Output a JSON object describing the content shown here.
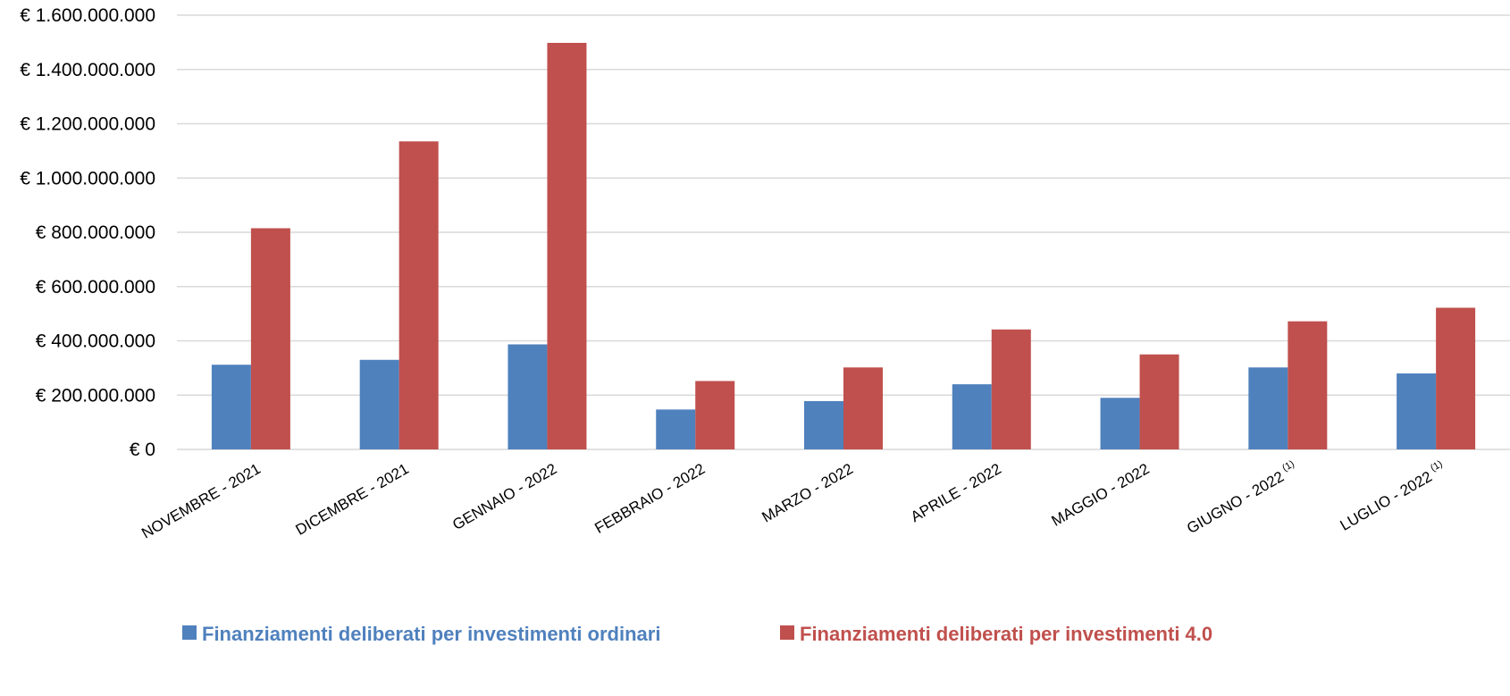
{
  "chart_data": {
    "type": "bar",
    "categories": [
      {
        "label": "NOVEMBRE - 2021",
        "note": ""
      },
      {
        "label": "DICEMBRE - 2021",
        "note": ""
      },
      {
        "label": "GENNAIO - 2022",
        "note": ""
      },
      {
        "label": "FEBBRAIO - 2022",
        "note": ""
      },
      {
        "label": "MARZO - 2022",
        "note": ""
      },
      {
        "label": "APRILE - 2022",
        "note": ""
      },
      {
        "label": "MAGGIO - 2022",
        "note": ""
      },
      {
        "label": "GIUGNO - 2022",
        "note": "(1)"
      },
      {
        "label": "LUGLIO - 2022",
        "note": "(1)"
      }
    ],
    "series": [
      {
        "name": "Finanziamenti deliberati per investimenti ordinari",
        "color": "#4f81bd",
        "values": [
          312000000,
          330000000,
          387000000,
          147000000,
          178000000,
          240000000,
          190000000,
          302000000,
          280000000
        ]
      },
      {
        "name": "Finanziamenti deliberati per investimenti 4.0",
        "color": "#c0504d",
        "values": [
          815000000,
          1135000000,
          1498000000,
          252000000,
          302000000,
          442000000,
          350000000,
          472000000,
          522000000
        ]
      }
    ],
    "ylim": [
      0,
      1600000000
    ],
    "yticks": [
      "€ 0",
      "€ 200.000.000",
      "€ 400.000.000",
      "€ 600.000.000",
      "€ 800.000.000",
      "€ 1.000.000.000",
      "€ 1.200.000.000",
      "€ 1.400.000.000",
      "€ 1.600.000.000"
    ],
    "ytick_values": [
      0,
      200000000,
      400000000,
      600000000,
      800000000,
      1000000000,
      1200000000,
      1400000000,
      1600000000
    ],
    "grid": true,
    "legend_position": "bottom",
    "gridline_color": "#d9d9d9"
  }
}
